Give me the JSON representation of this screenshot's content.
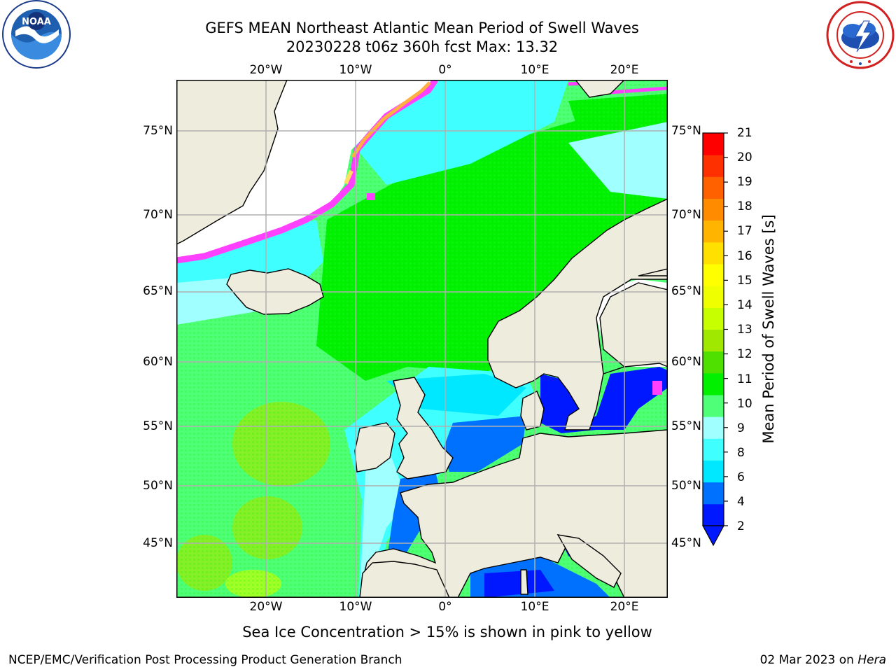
{
  "title": {
    "line1": "GEFS MEAN Northeast Atlantic Mean Period of Swell Waves",
    "line2": "20230228 t06z 360h fcst   Max: 13.32"
  },
  "map": {
    "projection": "lat-lon",
    "lon_range": [
      -30,
      25
    ],
    "lat_range": [
      41,
      78
    ],
    "gridlines": true,
    "longitude_ticks": [
      "20°W",
      "10°W",
      "0°",
      "10°E",
      "20°E"
    ],
    "latitude_ticks_left": [
      "75°N",
      "70°N",
      "65°N",
      "60°N",
      "55°N",
      "50°N",
      "45°N"
    ],
    "latitude_ticks_right": [
      "75°N",
      "70°N",
      "65°N",
      "60°N",
      "55°N",
      "50°N",
      "45°N"
    ],
    "colors": {
      "land": "#eeecdc",
      "coastline": "#000000",
      "grid": "#b0b0b0",
      "no_data": "#ffffff",
      "ice_pink": "#ff40ff",
      "ice_yellow": "#ffe060"
    }
  },
  "colorbar": {
    "label": "Mean Period of Swell Waves [s]",
    "ticks": [
      "21",
      "20",
      "19",
      "18",
      "17",
      "16",
      "15",
      "14",
      "13",
      "12",
      "11",
      "10",
      "9",
      "8",
      "6",
      "4",
      "2"
    ],
    "extend": "min",
    "colors": [
      "#0018ff",
      "#0070ff",
      "#00e8ff",
      "#40ffff",
      "#a0ffff",
      "#50ff78",
      "#00f000",
      "#50e000",
      "#a0e800",
      "#c8ff00",
      "#f0ff00",
      "#ffff00",
      "#ffe000",
      "#ffb400",
      "#ff8c00",
      "#ff6000",
      "#ff3000",
      "#ff0000"
    ]
  },
  "note": "Sea Ice Concentration > 15% is shown in pink to yellow",
  "footer": {
    "left": "NCEP/EMC/Verification Post Processing Product Generation Branch",
    "date": "02 Mar 2023 on",
    "host": "Hera"
  },
  "logos": {
    "left": "noaa-logo",
    "right": "national-weather-service-logo"
  }
}
